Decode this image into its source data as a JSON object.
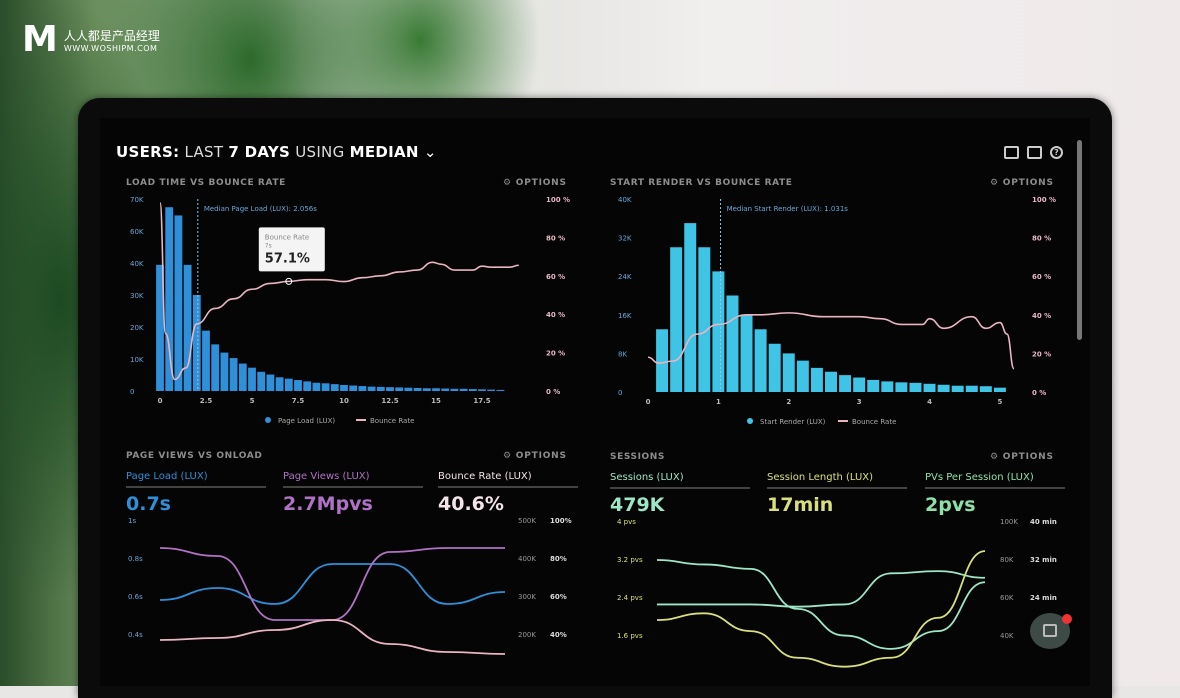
{
  "logo": {
    "brand": "人人都是产品经理",
    "url": "WWW.WOSHIPM.COM"
  },
  "header": {
    "users": "USERS:",
    "last": "LAST",
    "days": "7 DAYS",
    "using": "USING",
    "median": "MEDIAN",
    "chevron": "chevron-down-icon",
    "icons": [
      "monitor-icon",
      "image-icon",
      "help-icon"
    ]
  },
  "options_label": "⚙ OPTIONS",
  "colors": {
    "blue": "#2f8fd8",
    "cyan": "#3fc4e6",
    "pink": "#e8b5c0",
    "purple": "#b072c4",
    "mint": "#9ee6c8",
    "yellow": "#d9e07a",
    "green": "#8fe0a8"
  },
  "panels": {
    "load": {
      "title": "LOAD TIME VS BOUNCE RATE",
      "median": "Median Page Load (LUX): 2.056s",
      "tooltip_label": "Bounce Rate",
      "tooltip_sub": "7s",
      "tooltip_value": "57.1%",
      "legend": [
        "Page Load (LUX)",
        "Bounce Rate"
      ]
    },
    "render": {
      "title": "START RENDER VS BOUNCE RATE",
      "median": "Median Start Render (LUX): 1.031s",
      "legend": [
        "Start Render (LUX)",
        "Bounce Rate"
      ]
    },
    "views": {
      "title": "PAGE VIEWS VS ONLOAD",
      "stats": [
        {
          "label": "Page Load (LUX)",
          "value": "0.7s"
        },
        {
          "label": "Page Views (LUX)",
          "value": "2.7Mpvs"
        },
        {
          "label": "Bounce Rate (LUX)",
          "value": "40.6%"
        }
      ],
      "left_ticks": [
        "1s",
        "0.8s",
        "0.6s",
        "0.4s"
      ],
      "right_ticks1": [
        "500K",
        "400K",
        "300K",
        "200K"
      ],
      "right_ticks2": [
        "100%",
        "80%",
        "60%",
        "40%"
      ]
    },
    "sessions": {
      "title": "SESSIONS",
      "stats": [
        {
          "label": "Sessions (LUX)",
          "value": "479K"
        },
        {
          "label": "Session Length (LUX)",
          "value": "17min"
        },
        {
          "label": "PVs Per Session (LUX)",
          "value": "2pvs"
        }
      ],
      "left_ticks": [
        "4 pvs",
        "3.2 pvs",
        "2.4 pvs",
        "1.6 pvs"
      ],
      "right_ticks1": [
        "100K",
        "80K",
        "60K",
        "40K"
      ],
      "right_ticks2": [
        "40 min",
        "32 min",
        "24 min",
        ""
      ]
    }
  },
  "chat": {
    "badge": "4"
  },
  "chart_data": [
    {
      "type": "bar",
      "title": "LOAD TIME VS BOUNCE RATE",
      "x_ticks": [
        "0",
        "2.5",
        "5",
        "7.5",
        "10",
        "12.5",
        "15",
        "17.5"
      ],
      "y_ticks": [
        "0",
        "10K",
        "20K",
        "30K",
        "40K",
        "60K",
        "70K"
      ],
      "y2_ticks": [
        "0 %",
        "20 %",
        "40 %",
        "60 %",
        "80 %",
        "100 %"
      ],
      "xlim": [
        0,
        20
      ],
      "ylim": [
        0,
        70000
      ],
      "y2lim": [
        0,
        100
      ],
      "x_start": 0,
      "x_step": 0.5,
      "values": [
        46000,
        67000,
        64000,
        46000,
        35000,
        22000,
        17000,
        14000,
        12000,
        10000,
        8500,
        7000,
        6000,
        5000,
        4500,
        4000,
        3500,
        3000,
        2800,
        2500,
        2200,
        2000,
        1800,
        1600,
        1500,
        1400,
        1300,
        1200,
        1100,
        1000,
        1000,
        900,
        800,
        800,
        700,
        600,
        500,
        400
      ],
      "line": {
        "name": "Bounce Rate",
        "x": [
          0,
          0.3,
          0.8,
          1.4,
          2,
          3,
          4,
          5,
          6,
          7,
          8,
          9,
          10,
          11,
          12,
          13,
          14,
          14.8,
          15.3,
          16,
          17,
          17.5,
          18,
          19,
          19.5
        ],
        "y": [
          98,
          30,
          6,
          12,
          35,
          43,
          48,
          53,
          56,
          57.1,
          58,
          58,
          57,
          59,
          60,
          62,
          63,
          67,
          66,
          63,
          63,
          65,
          64.5,
          64.5,
          65.5
        ]
      }
    },
    {
      "type": "bar",
      "title": "START RENDER VS BOUNCE RATE",
      "x_ticks": [
        "0",
        "1",
        "2",
        "3",
        "4",
        "5"
      ],
      "y_ticks": [
        "0",
        "8K",
        "16K",
        "24K",
        "32K",
        "40K"
      ],
      "y2_ticks": [
        "0 %",
        "20 %",
        "40 %",
        "60 %",
        "80 %",
        "100 %"
      ],
      "xlim": [
        0,
        5.2
      ],
      "ylim": [
        0,
        40000
      ],
      "y2lim": [
        0,
        100
      ],
      "x_start": 0.2,
      "x_step": 0.2,
      "values": [
        13000,
        30000,
        35000,
        30000,
        25000,
        20000,
        16000,
        13000,
        10000,
        8000,
        6500,
        5000,
        4200,
        3500,
        3000,
        2500,
        2200,
        2000,
        1900,
        1700,
        1500,
        1300,
        1300,
        1200,
        900
      ],
      "line": {
        "name": "Bounce Rate",
        "x": [
          0,
          0.15,
          0.35,
          0.7,
          1,
          1.4,
          1.6,
          2,
          2.5,
          3,
          3.3,
          3.6,
          3.9,
          4,
          4.2,
          4.6,
          4.8,
          5,
          5.1,
          5.2
        ],
        "y": [
          18,
          15,
          16,
          30,
          35,
          40,
          40,
          41,
          39,
          39,
          38,
          35,
          35,
          38,
          33,
          39,
          33,
          36,
          30,
          12
        ]
      }
    },
    {
      "type": "line",
      "title": "PAGE VIEWS VS ONLOAD",
      "series": [
        {
          "color": "blue",
          "y": [
            0.6,
            0.66,
            0.58,
            0.78,
            0.78,
            0.58,
            0.64
          ]
        },
        {
          "color": "purple",
          "y": [
            0.86,
            0.82,
            0.5,
            0.5,
            0.84,
            0.86,
            0.86
          ]
        },
        {
          "color": "pink",
          "y": [
            0.4,
            0.41,
            0.45,
            0.5,
            0.38,
            0.34,
            0.33
          ]
        }
      ]
    },
    {
      "type": "line",
      "title": "SESSIONS",
      "series": [
        {
          "color": "mint",
          "y": [
            3.1,
            3.0,
            2.9,
            2.0,
            1.4,
            1.1,
            1.5,
            2.6
          ]
        },
        {
          "color": "mint",
          "y": [
            2.1,
            2.1,
            2.1,
            2.05,
            2.1,
            2.8,
            2.85,
            2.7
          ]
        },
        {
          "color": "yellow",
          "y": [
            1.75,
            1.9,
            1.5,
            0.9,
            0.7,
            0.9,
            1.8,
            3.3
          ]
        }
      ]
    }
  ]
}
